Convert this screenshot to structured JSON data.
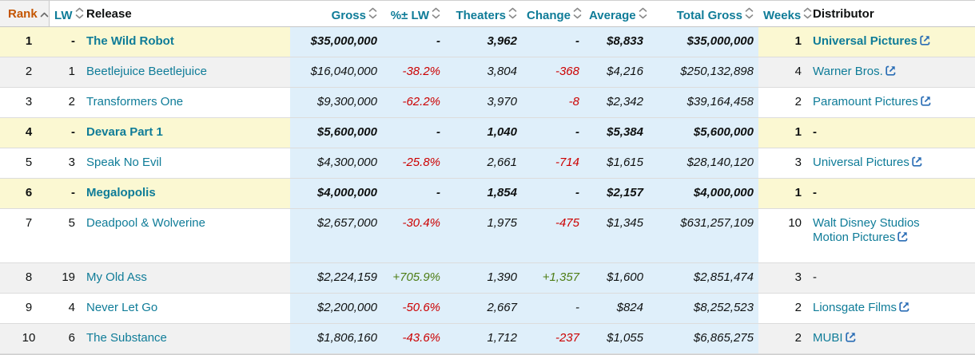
{
  "table": {
    "columns": [
      {
        "key": "rank",
        "label": "Rank",
        "sort": "asc"
      },
      {
        "key": "lw",
        "label": "LW",
        "sort": "both"
      },
      {
        "key": "release",
        "label": "Release",
        "sort": null
      },
      {
        "key": "gross",
        "label": "Gross",
        "sort": "both"
      },
      {
        "key": "pct_lw",
        "label": "%± LW",
        "sort": "both"
      },
      {
        "key": "theaters",
        "label": "Theaters",
        "sort": "both"
      },
      {
        "key": "change",
        "label": "Change",
        "sort": "both"
      },
      {
        "key": "average",
        "label": "Average",
        "sort": "both"
      },
      {
        "key": "total_gross",
        "label": "Total Gross",
        "sort": "both"
      },
      {
        "key": "weeks",
        "label": "Weeks",
        "sort": "both"
      },
      {
        "key": "distributor",
        "label": "Distributor",
        "sort": null
      }
    ],
    "rows": [
      {
        "rank": "1",
        "lw": "-",
        "release": "The Wild Robot",
        "gross": "$35,000,000",
        "pct_lw": "-",
        "pct_class": "",
        "theaters": "3,962",
        "change": "-",
        "change_class": "",
        "average": "$8,833",
        "total_gross": "$35,000,000",
        "weeks": "1",
        "distributor": "Universal Pictures",
        "dist_link": true,
        "is_new": true,
        "alt": false,
        "tall": false
      },
      {
        "rank": "2",
        "lw": "1",
        "release": "Beetlejuice Beetlejuice",
        "gross": "$16,040,000",
        "pct_lw": "-38.2%",
        "pct_class": "neg",
        "theaters": "3,804",
        "change": "-368",
        "change_class": "neg",
        "average": "$4,216",
        "total_gross": "$250,132,898",
        "weeks": "4",
        "distributor": "Warner Bros.",
        "dist_link": true,
        "is_new": false,
        "alt": true,
        "tall": false
      },
      {
        "rank": "3",
        "lw": "2",
        "release": "Transformers One",
        "gross": "$9,300,000",
        "pct_lw": "-62.2%",
        "pct_class": "neg",
        "theaters": "3,970",
        "change": "-8",
        "change_class": "neg",
        "average": "$2,342",
        "total_gross": "$39,164,458",
        "weeks": "2",
        "distributor": "Paramount Pictures",
        "dist_link": true,
        "is_new": false,
        "alt": false,
        "tall": false
      },
      {
        "rank": "4",
        "lw": "-",
        "release": "Devara Part 1",
        "gross": "$5,600,000",
        "pct_lw": "-",
        "pct_class": "",
        "theaters": "1,040",
        "change": "-",
        "change_class": "",
        "average": "$5,384",
        "total_gross": "$5,600,000",
        "weeks": "1",
        "distributor": "-",
        "dist_link": false,
        "is_new": true,
        "alt": false,
        "tall": false
      },
      {
        "rank": "5",
        "lw": "3",
        "release": "Speak No Evil",
        "gross": "$4,300,000",
        "pct_lw": "-25.8%",
        "pct_class": "neg",
        "theaters": "2,661",
        "change": "-714",
        "change_class": "neg",
        "average": "$1,615",
        "total_gross": "$28,140,120",
        "weeks": "3",
        "distributor": "Universal Pictures",
        "dist_link": true,
        "is_new": false,
        "alt": false,
        "tall": false
      },
      {
        "rank": "6",
        "lw": "-",
        "release": "Megalopolis",
        "gross": "$4,000,000",
        "pct_lw": "-",
        "pct_class": "",
        "theaters": "1,854",
        "change": "-",
        "change_class": "",
        "average": "$2,157",
        "total_gross": "$4,000,000",
        "weeks": "1",
        "distributor": "-",
        "dist_link": false,
        "is_new": true,
        "alt": false,
        "tall": false
      },
      {
        "rank": "7",
        "lw": "5",
        "release": "Deadpool & Wolverine",
        "gross": "$2,657,000",
        "pct_lw": "-30.4%",
        "pct_class": "neg",
        "theaters": "1,975",
        "change": "-475",
        "change_class": "neg",
        "average": "$1,345",
        "total_gross": "$631,257,109",
        "weeks": "10",
        "distributor": "Walt Disney Studios Motion Pictures",
        "dist_link": true,
        "is_new": false,
        "alt": false,
        "tall": true
      },
      {
        "rank": "8",
        "lw": "19",
        "release": "My Old Ass",
        "gross": "$2,224,159",
        "pct_lw": "+705.9%",
        "pct_class": "pos",
        "theaters": "1,390",
        "change": "+1,357",
        "change_class": "pos",
        "average": "$1,600",
        "total_gross": "$2,851,474",
        "weeks": "3",
        "distributor": "-",
        "dist_link": false,
        "is_new": false,
        "alt": true,
        "tall": false
      },
      {
        "rank": "9",
        "lw": "4",
        "release": "Never Let Go",
        "gross": "$2,200,000",
        "pct_lw": "-50.6%",
        "pct_class": "neg",
        "theaters": "2,667",
        "change": "-",
        "change_class": "",
        "average": "$824",
        "total_gross": "$8,252,523",
        "weeks": "2",
        "distributor": "Lionsgate Films",
        "dist_link": true,
        "is_new": false,
        "alt": false,
        "tall": false
      },
      {
        "rank": "10",
        "lw": "6",
        "release": "The Substance",
        "gross": "$1,806,160",
        "pct_lw": "-43.6%",
        "pct_class": "neg",
        "theaters": "1,712",
        "change": "-237",
        "change_class": "neg",
        "average": "$1,055",
        "total_gross": "$6,865,275",
        "weeks": "2",
        "distributor": "MUBI",
        "dist_link": true,
        "is_new": false,
        "alt": true,
        "tall": false
      }
    ]
  },
  "icons": {
    "rank_sort": "sort-ascending-icon",
    "column_sort": "sort-toggle-icon",
    "distributor_link": "external-link-icon"
  },
  "colors": {
    "link_teal": "#0f7c98",
    "rank_header_orange": "#c45500",
    "negative_red": "#cc0000",
    "positive_green": "#4e7d15",
    "new_release_row_yellow": "#fbf8d2",
    "money_band_blue": "#dfeffa",
    "alt_row_gray": "#f1f1f1",
    "external_link_blue": "#2a6db5"
  }
}
